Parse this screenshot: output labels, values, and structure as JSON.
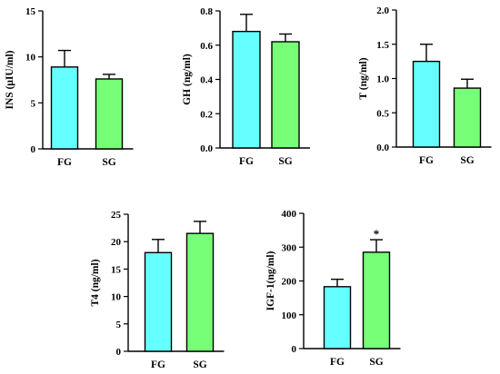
{
  "colors": {
    "FG": "#66ffff",
    "SG": "#77ff77",
    "axis": "#000000"
  },
  "chart_data": [
    {
      "id": "ins",
      "type": "bar",
      "ylabel": "INS (μIU/ml)",
      "categories": [
        "FG",
        "SG"
      ],
      "values": [
        8.9,
        7.6
      ],
      "errors": [
        1.8,
        0.5
      ],
      "ylim": [
        0,
        15
      ],
      "yticks": [
        0,
        5,
        10,
        15
      ],
      "ytick_labels": [
        "0",
        "5",
        "10",
        "15"
      ],
      "annotations": [
        "",
        ""
      ]
    },
    {
      "id": "gh",
      "type": "bar",
      "ylabel": "GH (ng/ml)",
      "categories": [
        "FG",
        "SG"
      ],
      "values": [
        0.68,
        0.62
      ],
      "errors": [
        0.1,
        0.045
      ],
      "ylim": [
        0,
        0.8
      ],
      "yticks": [
        0,
        0.2,
        0.4,
        0.6,
        0.8
      ],
      "ytick_labels": [
        "0.0",
        "0.2",
        "0.4",
        "0.6",
        "0.8"
      ],
      "annotations": [
        "",
        ""
      ]
    },
    {
      "id": "t",
      "type": "bar",
      "ylabel": "T (ng/ml)",
      "categories": [
        "FG",
        "SG"
      ],
      "values": [
        1.25,
        0.86
      ],
      "errors": [
        0.25,
        0.13
      ],
      "ylim": [
        0,
        2.0
      ],
      "yticks": [
        0,
        0.5,
        1.0,
        1.5,
        2.0
      ],
      "ytick_labels": [
        "0.0",
        "0.5",
        "1.0",
        "1.5",
        "2.0"
      ],
      "annotations": [
        "",
        ""
      ]
    },
    {
      "id": "t4",
      "type": "bar",
      "ylabel": "T4 (ng/ml)",
      "categories": [
        "FG",
        "SG"
      ],
      "values": [
        18.0,
        21.5
      ],
      "errors": [
        2.4,
        2.2
      ],
      "ylim": [
        0,
        25
      ],
      "yticks": [
        0,
        5,
        10,
        15,
        20,
        25
      ],
      "ytick_labels": [
        "0",
        "5",
        "10",
        "15",
        "20",
        "25"
      ],
      "annotations": [
        "",
        ""
      ]
    },
    {
      "id": "igf1",
      "type": "bar",
      "ylabel": "IGF-1(ng/ml)",
      "categories": [
        "FG",
        "SG"
      ],
      "values": [
        183,
        285
      ],
      "errors": [
        22,
        37
      ],
      "ylim": [
        0,
        400
      ],
      "yticks": [
        0,
        100,
        200,
        300,
        400
      ],
      "ytick_labels": [
        "0",
        "100",
        "200",
        "300",
        "400"
      ],
      "annotations": [
        "",
        "*"
      ]
    }
  ]
}
